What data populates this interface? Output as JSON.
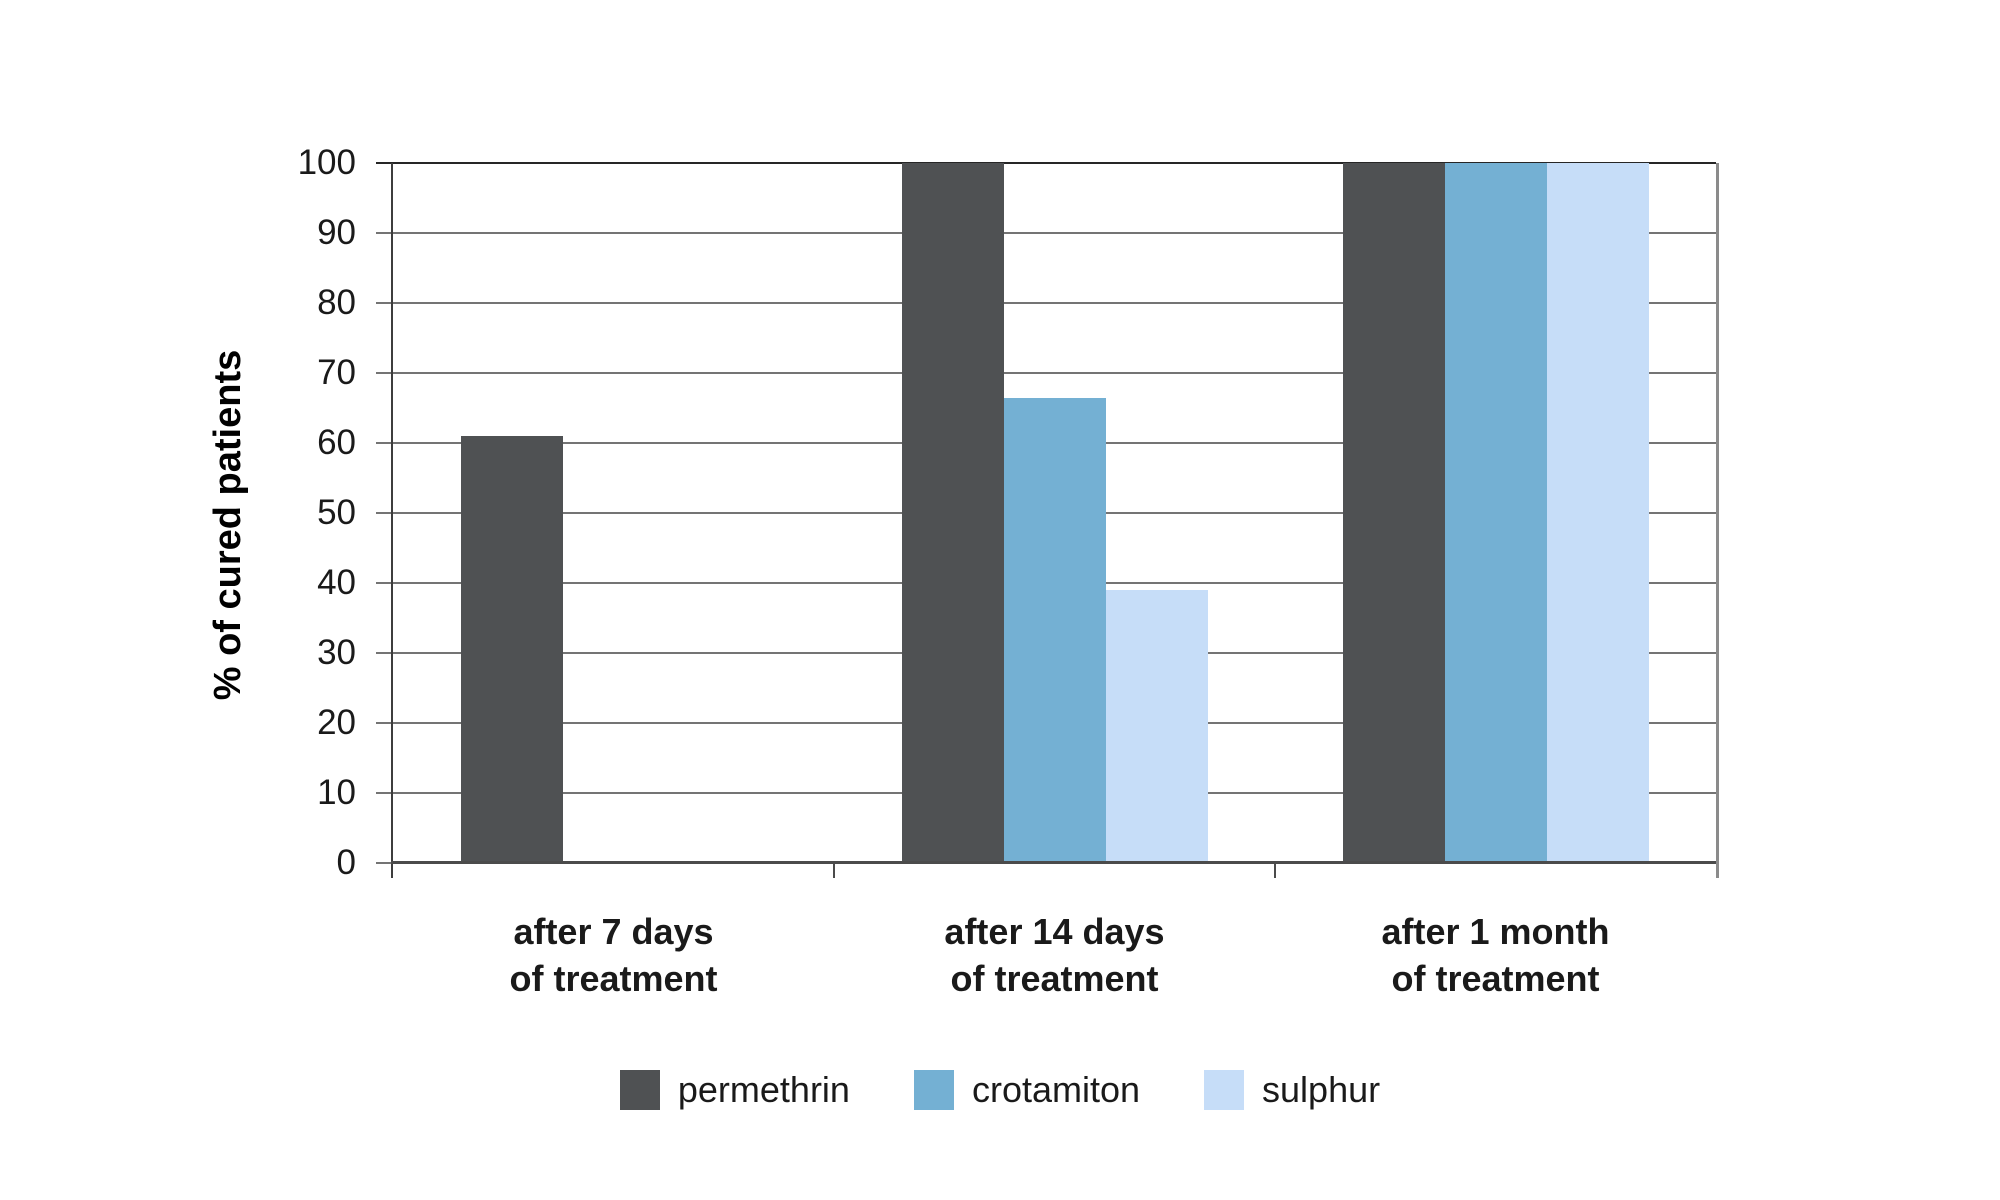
{
  "chart_data": {
    "type": "bar",
    "title": "",
    "ylabel": "% of cured patients",
    "categories": [
      "after 7 days\nof treatment",
      "after 14 days\nof treatment",
      "after 1 month\nof treatment"
    ],
    "series": [
      {
        "name": "permethrin",
        "color": "#4f5153",
        "values": [
          61,
          100,
          100
        ]
      },
      {
        "name": "crotamiton",
        "color": "#74b0d3",
        "values": [
          0,
          66.5,
          100
        ]
      },
      {
        "name": "sulphur",
        "color": "#c6ddf8",
        "values": [
          0,
          39,
          100
        ]
      }
    ],
    "y_axis": {
      "min": 0,
      "max": 100,
      "step": 10,
      "tick_labels": [
        "0",
        "10",
        "20",
        "30",
        "40",
        "50",
        "60",
        "70",
        "80",
        "90",
        "100"
      ]
    },
    "grid": true,
    "legend_position": "bottom"
  }
}
